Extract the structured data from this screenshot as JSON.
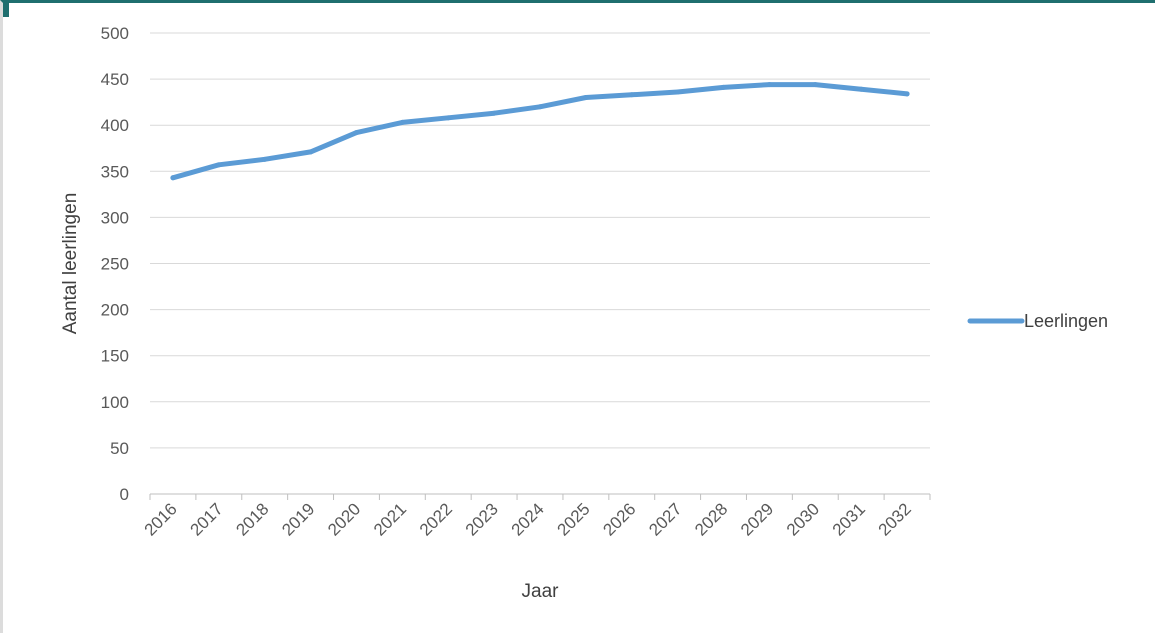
{
  "chart_data": {
    "type": "line",
    "title": "",
    "xlabel": "Jaar",
    "ylabel": "Aantal leerlingen",
    "categories": [
      "2016",
      "2017",
      "2018",
      "2019",
      "2020",
      "2021",
      "2022",
      "2023",
      "2024",
      "2025",
      "2026",
      "2027",
      "2028",
      "2029",
      "2030",
      "2031",
      "2032"
    ],
    "series": [
      {
        "name": "Leerlingen",
        "values": [
          343,
          357,
          363,
          371,
          392,
          403,
          408,
          413,
          420,
          430,
          433,
          436,
          441,
          444,
          444,
          439,
          434
        ],
        "color": "#5b9bd5"
      }
    ],
    "ylim": [
      0,
      500
    ],
    "yticks": [
      0,
      50,
      100,
      150,
      200,
      250,
      300,
      350,
      400,
      450,
      500
    ],
    "grid": true,
    "legend_position": "right"
  }
}
